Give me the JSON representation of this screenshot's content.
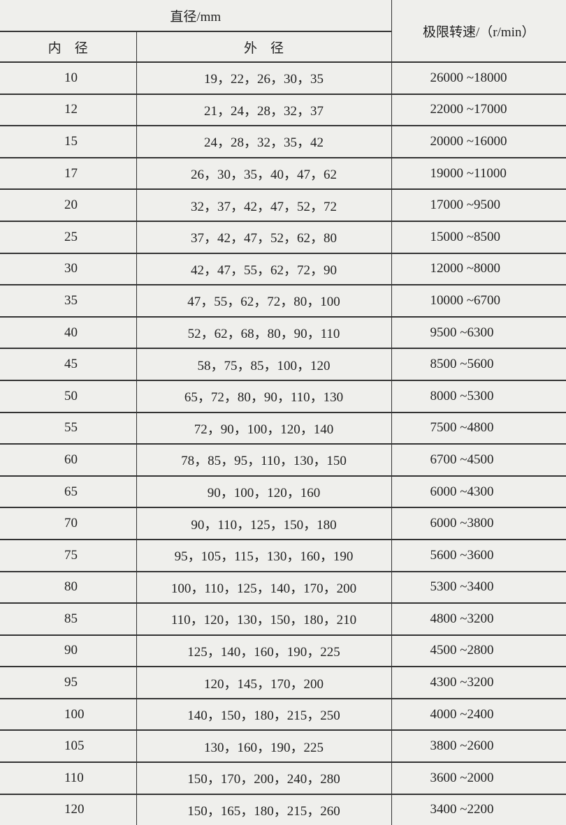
{
  "header": {
    "diameter": "直径/mm",
    "inner": "内　径",
    "outer": "外　径",
    "speed": "极限转速/（r/min）"
  },
  "table": {
    "rows": [
      [
        "10",
        "19，22，26，30，35",
        "26000 ~18000"
      ],
      [
        "12",
        "21，24，28，32，37",
        "22000 ~17000"
      ],
      [
        "15",
        "24，28，32，35，42",
        "20000 ~16000"
      ],
      [
        "17",
        "26，30，35，40，47，62",
        "19000 ~11000"
      ],
      [
        "20",
        "32，37，42，47，52，72",
        "17000 ~9500"
      ],
      [
        "25",
        "37，42，47，52，62，80",
        "15000 ~8500"
      ],
      [
        "30",
        "42，47，55，62，72，90",
        "12000 ~8000"
      ],
      [
        "35",
        "47，55，62，72，80，100",
        "10000 ~6700"
      ],
      [
        "40",
        "52，62，68，80，90，110",
        "9500 ~6300"
      ],
      [
        "45",
        "58，75，85，100，120",
        "8500 ~5600"
      ],
      [
        "50",
        "65，72，80，90，110，130",
        "8000 ~5300"
      ],
      [
        "55",
        "72，90，100，120，140",
        "7500 ~4800"
      ],
      [
        "60",
        "78，85，95，110，130，150",
        "6700 ~4500"
      ],
      [
        "65",
        "90，100，120，160",
        "6000 ~4300"
      ],
      [
        "70",
        "90，110，125，150，180",
        "6000 ~3800"
      ],
      [
        "75",
        "95，105，115，130，160，190",
        "5600 ~3600"
      ],
      [
        "80",
        "100，110，125，140，170，200",
        "5300 ~3400"
      ],
      [
        "85",
        "110，120，130，150，180，210",
        "4800 ~3200"
      ],
      [
        "90",
        "125，140，160，190，225",
        "4500 ~2800"
      ],
      [
        "95",
        "120，145，170，200",
        "4300 ~3200"
      ],
      [
        "100",
        "140，150，180，215，250",
        "4000 ~2400"
      ],
      [
        "105",
        "130，160，190，225",
        "3800 ~2600"
      ],
      [
        "110",
        "150，170，200，240，280",
        "3600 ~2000"
      ],
      [
        "120",
        "150，165，180，215，260",
        "3400 ~2200"
      ]
    ]
  }
}
